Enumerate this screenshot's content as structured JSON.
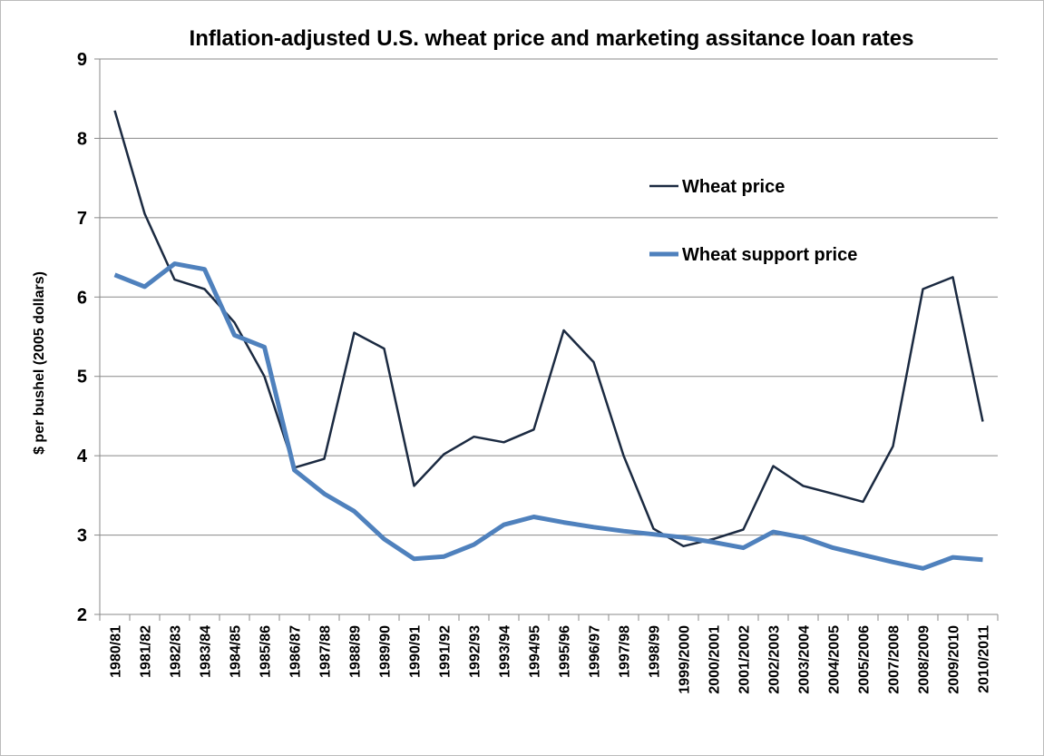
{
  "chart_data": {
    "type": "line",
    "title": "Inflation-adjusted U.S. wheat price and marketing assitance loan rates",
    "y_label": "$ per bushel (2005 dollars)",
    "categories": [
      "1980/81",
      "1981/82",
      "1982/83",
      "1983/84",
      "1984/85",
      "1985/86",
      "1986/87",
      "1987/88",
      "1988/89",
      "1989/90",
      "1990/91",
      "1991/92",
      "1992/93",
      "1993/94",
      "1994/95",
      "1995/96",
      "1996/97",
      "1997/98",
      "1998/99",
      "1999/2000",
      "2000/2001",
      "2001/2002",
      "2002/2003",
      "2003/2004",
      "2004/2005",
      "2005/2006",
      "2007/2008",
      "2008/2009",
      "2009/2010",
      "2010/2011"
    ],
    "series": [
      {
        "name": "Wheat price",
        "color": "#1b2a41",
        "values": [
          8.35,
          7.05,
          6.22,
          6.1,
          5.68,
          5.0,
          3.85,
          3.96,
          5.55,
          5.35,
          3.62,
          4.02,
          4.24,
          4.17,
          4.33,
          5.58,
          5.18,
          4.0,
          3.08,
          2.86,
          2.95,
          3.07,
          3.87,
          3.62,
          3.52,
          3.42,
          4.12,
          6.1,
          6.25,
          4.43
        ]
      },
      {
        "name": "Wheat support price",
        "color": "#4f81bd",
        "values": [
          6.28,
          6.13,
          6.42,
          6.35,
          5.52,
          5.37,
          3.82,
          3.52,
          3.3,
          2.95,
          2.7,
          2.73,
          2.88,
          3.13,
          3.23,
          3.16,
          3.1,
          3.05,
          3.01,
          2.97,
          2.91,
          2.84,
          3.04,
          2.97,
          2.84,
          2.75,
          2.66,
          2.58,
          2.72,
          2.69
        ]
      }
    ],
    "ylim": [
      2,
      9
    ],
    "yticks": [
      2,
      3,
      4,
      5,
      6,
      7,
      8,
      9
    ],
    "grid": true
  }
}
